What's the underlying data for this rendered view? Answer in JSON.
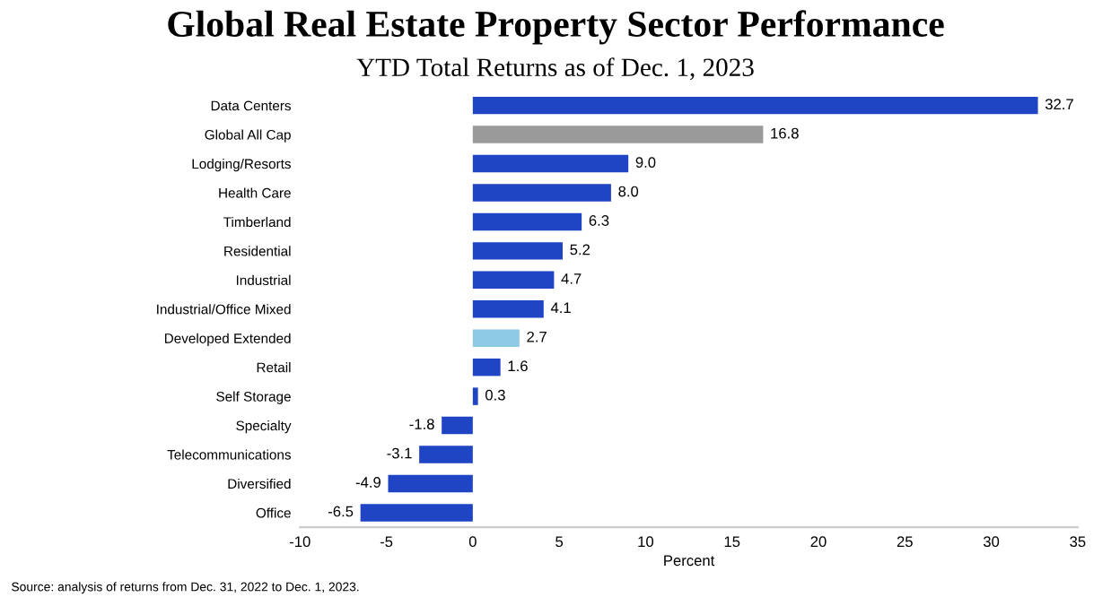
{
  "chart_data": {
    "type": "bar",
    "orientation": "horizontal",
    "title": "Global Real Estate Property Sector Performance",
    "subtitle": "YTD Total Returns as of Dec. 1, 2023",
    "xlabel": "Percent",
    "categories": [
      "Data Centers",
      "Global All Cap",
      "Lodging/Resorts",
      "Health Care",
      "Timberland",
      "Residential",
      "Industrial",
      "Industrial/Office Mixed",
      "Developed Extended",
      "Retail",
      "Self Storage",
      "Specialty",
      "Telecommunications",
      "Diversified",
      "Office"
    ],
    "values": [
      32.7,
      16.8,
      9.0,
      8.0,
      6.3,
      5.2,
      4.7,
      4.1,
      2.7,
      1.6,
      0.3,
      -1.8,
      -3.1,
      -4.9,
      -6.5
    ],
    "value_labels": [
      "32.7",
      "16.8",
      "9.0",
      "8.0",
      "6.3",
      "5.2",
      "4.7",
      "4.1",
      "2.7",
      "1.6",
      "0.3",
      "-1.8",
      "-3.1",
      "-4.9",
      "-6.5"
    ],
    "colors": [
      "#1f44c4",
      "#9a9a9a",
      "#1f44c4",
      "#1f44c4",
      "#1f44c4",
      "#1f44c4",
      "#1f44c4",
      "#1f44c4",
      "#8ecae6",
      "#1f44c4",
      "#1f44c4",
      "#1f44c4",
      "#1f44c4",
      "#1f44c4",
      "#1f44c4"
    ],
    "xlim": [
      -10,
      35
    ],
    "xticks": [
      -10,
      -5,
      0,
      5,
      10,
      15,
      20,
      25,
      30,
      35
    ],
    "grid": false,
    "legend": false,
    "annotations": [
      "Source: analysis of returns from Dec. 31, 2022 to Dec. 1, 2023."
    ]
  }
}
